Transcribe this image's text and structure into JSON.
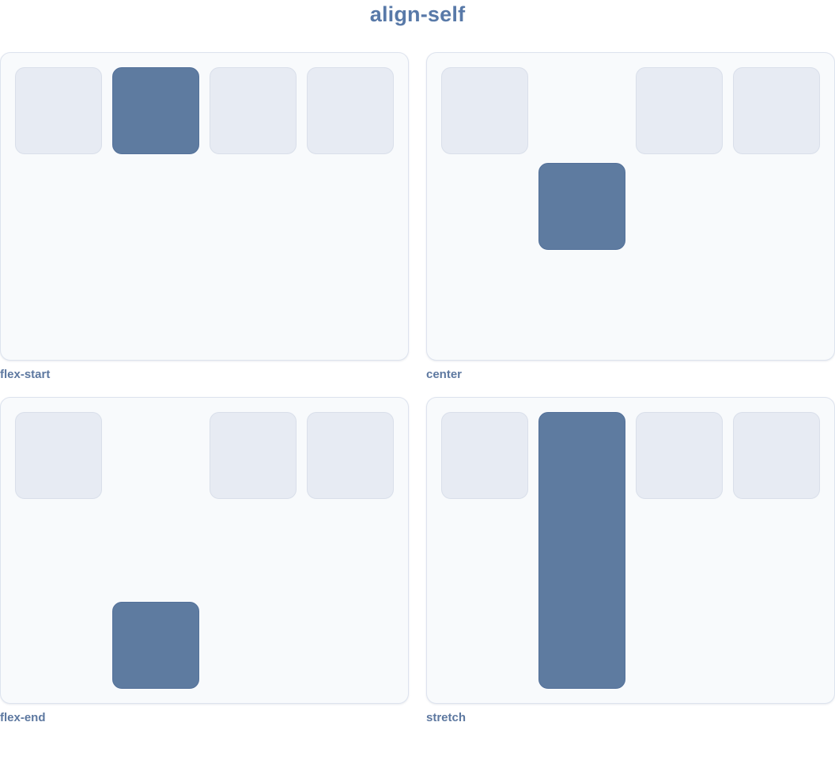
{
  "title": "align-self",
  "colors": {
    "page_bg": "#ffffff",
    "title_text": "#5879a8",
    "label_text": "#5d78a0",
    "panel_bg": "#f8fafc",
    "panel_border": "#dde3ee",
    "item_bg": "#e7ebf3",
    "item_border": "#d9dfea",
    "highlight_bg": "#5e7ba0",
    "highlight_border": "#54719a"
  },
  "figures": [
    {
      "label": "flex-start",
      "align_self_value": "flex-start",
      "items_count": 4,
      "highlighted_item_index": 2
    },
    {
      "label": "center",
      "align_self_value": "center",
      "items_count": 4,
      "highlighted_item_index": 2
    },
    {
      "label": "flex-end",
      "align_self_value": "flex-end",
      "items_count": 4,
      "highlighted_item_index": 2
    },
    {
      "label": "stretch",
      "align_self_value": "stretch",
      "items_count": 4,
      "highlighted_item_index": 2
    }
  ]
}
